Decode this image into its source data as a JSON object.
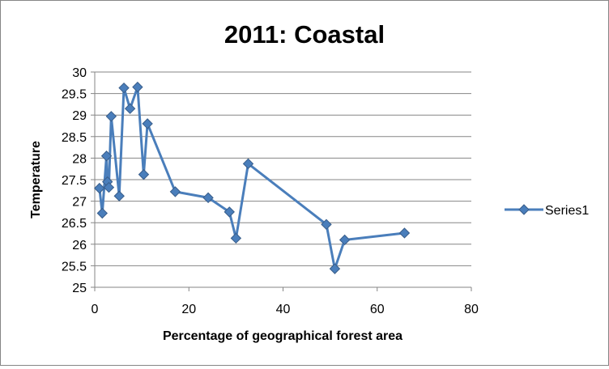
{
  "chart_data": {
    "type": "scatter",
    "title": "2011: Coastal",
    "xlabel": "Percentage of geographical forest area",
    "ylabel": "Temperature",
    "xlim": [
      0,
      80
    ],
    "ylim": [
      25,
      30
    ],
    "x_ticks": [
      0,
      20,
      40,
      60,
      80
    ],
    "y_ticks": [
      25,
      25.5,
      26,
      26.5,
      27,
      27.5,
      28,
      28.5,
      29,
      29.5,
      30
    ],
    "x_tick_labels": [
      "0",
      "20",
      "40",
      "60",
      "80"
    ],
    "y_tick_labels": [
      "25",
      "25.5",
      "26",
      "26.5",
      "27",
      "27.5",
      "28",
      "28.5",
      "29",
      "29.5",
      "30"
    ],
    "grid": "horizontal",
    "legend_position": "right",
    "series": [
      {
        "name": "Series1",
        "color": "#4a7ebb",
        "marker": "diamond",
        "connected": true,
        "points": [
          [
            1.0,
            27.3
          ],
          [
            1.6,
            26.72
          ],
          [
            2.5,
            28.05
          ],
          [
            2.7,
            27.45
          ],
          [
            3.0,
            27.32
          ],
          [
            3.5,
            28.97
          ],
          [
            5.2,
            27.12
          ],
          [
            6.2,
            29.63
          ],
          [
            7.5,
            29.15
          ],
          [
            9.1,
            29.65
          ],
          [
            10.4,
            27.62
          ],
          [
            11.2,
            28.8
          ],
          [
            17.1,
            27.22
          ],
          [
            24.1,
            27.08
          ],
          [
            28.6,
            26.75
          ],
          [
            30.0,
            26.14
          ],
          [
            32.6,
            27.87
          ],
          [
            49.2,
            26.46
          ],
          [
            51.0,
            25.43
          ],
          [
            53.1,
            26.1
          ],
          [
            65.8,
            26.26
          ]
        ]
      }
    ]
  }
}
